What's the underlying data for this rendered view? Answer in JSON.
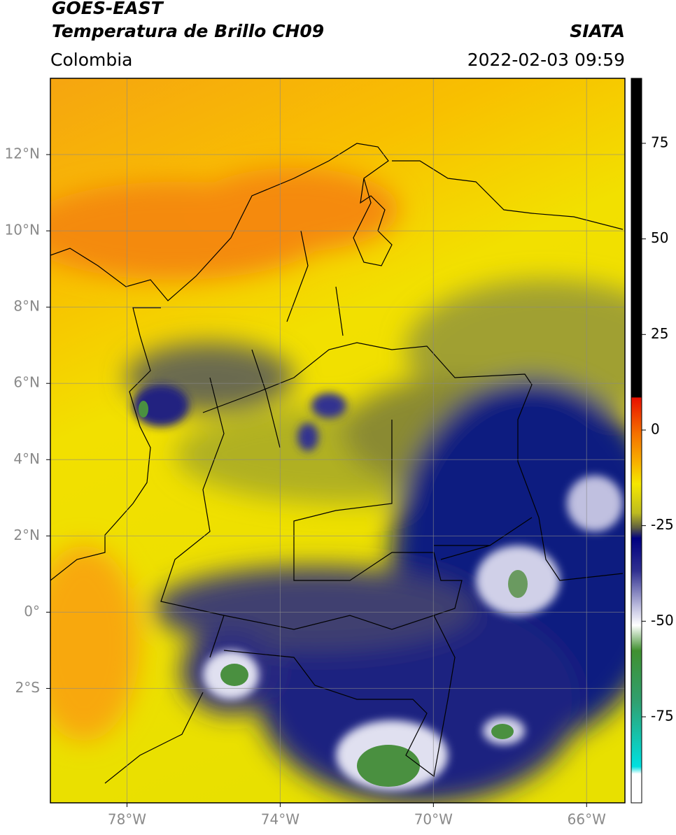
{
  "header": {
    "title": "GOES-EAST",
    "subtitle": "Temperatura de Brillo CH09",
    "source": "SIATA",
    "region": "Colombia",
    "timestamp": "2022-02-03 09:59"
  },
  "map": {
    "xlim": [
      -80,
      -65
    ],
    "ylim": [
      -5,
      14
    ],
    "xticks": [
      {
        "value": -78,
        "label": "78°W"
      },
      {
        "value": -74,
        "label": "74°W"
      },
      {
        "value": -70,
        "label": "70°W"
      },
      {
        "value": -66,
        "label": "66°W"
      }
    ],
    "yticks": [
      {
        "value": 12,
        "label": "12°N"
      },
      {
        "value": 10,
        "label": "10°N"
      },
      {
        "value": 8,
        "label": "8°N"
      },
      {
        "value": 6,
        "label": "6°N"
      },
      {
        "value": 4,
        "label": "4°N"
      },
      {
        "value": 2,
        "label": "2°N"
      },
      {
        "value": 0,
        "label": "0°"
      },
      {
        "value": -2,
        "label": "2°S"
      }
    ],
    "grid": true
  },
  "colorbar": {
    "clim": [
      -97.5,
      92
    ],
    "ticks": [
      75,
      50,
      25,
      0,
      -25,
      -50,
      -75
    ]
  }
}
